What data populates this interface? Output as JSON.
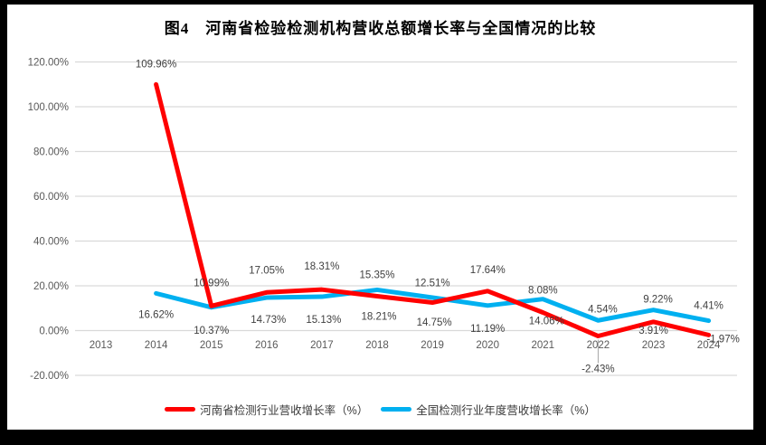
{
  "title": "图4　河南省检验检测机构营收总额增长率与全国情况的比较",
  "colors": {
    "frame": "#000000",
    "background": "#FFFFFF",
    "gridline": "#D9D9D9",
    "leader_line": "#A6A6A6",
    "axis_text": "#595959",
    "data_label_text": "#404040",
    "henan_series": "#FF0000",
    "national_series": "#00B0F0"
  },
  "legend": {
    "position": "bottom-center",
    "items": [
      {
        "label": "河南省检测行业营收增长率（%）",
        "color": "#FF0000"
      },
      {
        "label": "全国检测行业年度营收增长率（%）",
        "color": "#00B0F0"
      }
    ]
  },
  "chart_data": {
    "type": "line",
    "title": "图4　河南省检验检测机构营收总额增长率与全国情况的比较",
    "xlabel": "",
    "ylabel": "",
    "categories": [
      "2013",
      "2014",
      "2015",
      "2016",
      "2017",
      "2018",
      "2019",
      "2020",
      "2021",
      "2022",
      "2023",
      "2024"
    ],
    "series": [
      {
        "name": "河南省检测行业营收增长率（%）",
        "color": "#FF0000",
        "values": [
          null,
          109.96,
          10.99,
          17.05,
          18.31,
          15.35,
          12.51,
          17.64,
          8.08,
          -2.43,
          3.91,
          -1.97
        ],
        "label_dy": [
          0,
          -19,
          -22,
          -21,
          -22,
          -20,
          -18,
          -20,
          -21,
          40,
          13,
          8
        ],
        "label_dx": [
          0,
          0,
          0,
          0,
          0,
          0,
          0,
          0,
          0,
          0,
          0,
          16
        ],
        "leader_points": [
          9
        ]
      },
      {
        "name": "全国检测行业年度营收增长率（%）",
        "color": "#00B0F0",
        "values": [
          null,
          16.62,
          10.37,
          14.73,
          15.13,
          18.21,
          14.75,
          11.19,
          14.06,
          4.54,
          9.22,
          4.41
        ],
        "label_dy": [
          0,
          27,
          29,
          28,
          29,
          33,
          31,
          29,
          28,
          -9,
          -8,
          -13
        ],
        "label_dx": [
          0,
          0,
          0,
          2,
          2,
          2,
          2,
          0,
          4,
          5,
          5,
          0
        ],
        "leader_points": []
      }
    ],
    "yticks": [
      120,
      100,
      80,
      60,
      40,
      20,
      0,
      -20
    ],
    "ylim": [
      -20,
      120
    ],
    "ytick_format": "0.00%",
    "data_label_format": "0.00%",
    "grid": true,
    "legend_position": "bottom"
  }
}
